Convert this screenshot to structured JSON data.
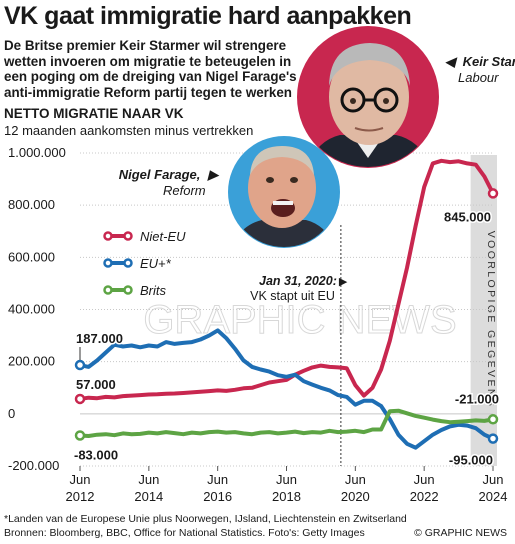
{
  "title": "VK gaat immigratie hard aanpakken",
  "subtitle": "De Britse premier Keir Starmer wil strengere wetten invoeren om migratie te beteugelen in een poging om de dreiging van Nigel Farage's anti-immigratie Reform partij tegen te werken",
  "people": {
    "starmer": {
      "name": "Keir Starmer,",
      "party": "Labour",
      "pointer": "◀"
    },
    "farage": {
      "name": "Nigel Farage,",
      "party": "Reform",
      "pointer": "▶"
    }
  },
  "colors": {
    "niet_eu": "#c8274f",
    "eu": "#1e6eb4",
    "brits": "#5da444",
    "provisional_band": "#dcdcdc",
    "grid": "#c8c8c8"
  },
  "chart_data": {
    "type": "line",
    "title": "NETTO MIGRATIE NAAR VK",
    "subtitle": "12 maanden aankomsten minus vertrekken",
    "xlim": [
      2012.5,
      2024.5
    ],
    "ylim": [
      -200000,
      1000000
    ],
    "y_ticks": [
      {
        "value": 1000000,
        "label": "1.000.000"
      },
      {
        "value": 800000,
        "label": "800.000"
      },
      {
        "value": 600000,
        "label": "600.000"
      },
      {
        "value": 400000,
        "label": "400.000"
      },
      {
        "value": 200000,
        "label": "200.000"
      },
      {
        "value": 0,
        "label": "0"
      },
      {
        "value": -200000,
        "label": "-200.000"
      }
    ],
    "x_ticks": [
      {
        "value": 2012.5,
        "month": "Jun",
        "year": "2012"
      },
      {
        "value": 2014.5,
        "month": "Jun",
        "year": "2014"
      },
      {
        "value": 2016.5,
        "month": "Jun",
        "year": "2016"
      },
      {
        "value": 2018.5,
        "month": "Jun",
        "year": "2018"
      },
      {
        "value": 2020.5,
        "month": "Jun",
        "year": "2020"
      },
      {
        "value": 2022.5,
        "month": "Jun",
        "year": "2022"
      },
      {
        "value": 2024.5,
        "month": "Jun",
        "year": "2024"
      }
    ],
    "grid": true,
    "legend_placement": "left",
    "series": [
      {
        "name": "Niet-EU",
        "color_key": "niet_eu",
        "points": [
          [
            2012.5,
            57000
          ],
          [
            2012.75,
            62000
          ],
          [
            2013.0,
            60000
          ],
          [
            2013.25,
            65000
          ],
          [
            2013.5,
            63000
          ],
          [
            2013.75,
            68000
          ],
          [
            2014.0,
            70000
          ],
          [
            2014.25,
            72000
          ],
          [
            2014.5,
            74000
          ],
          [
            2014.75,
            75000
          ],
          [
            2015.0,
            77000
          ],
          [
            2015.25,
            78000
          ],
          [
            2015.5,
            80000
          ],
          [
            2015.75,
            82000
          ],
          [
            2016.0,
            85000
          ],
          [
            2016.25,
            87000
          ],
          [
            2016.5,
            90000
          ],
          [
            2016.75,
            88000
          ],
          [
            2017.0,
            92000
          ],
          [
            2017.25,
            98000
          ],
          [
            2017.5,
            100000
          ],
          [
            2017.75,
            110000
          ],
          [
            2018.0,
            120000
          ],
          [
            2018.25,
            125000
          ],
          [
            2018.5,
            130000
          ],
          [
            2018.75,
            150000
          ],
          [
            2019.0,
            165000
          ],
          [
            2019.25,
            178000
          ],
          [
            2019.5,
            185000
          ],
          [
            2019.75,
            180000
          ],
          [
            2020.0,
            178000
          ],
          [
            2020.25,
            175000
          ],
          [
            2020.5,
            110000
          ],
          [
            2020.75,
            70000
          ],
          [
            2021.0,
            100000
          ],
          [
            2021.25,
            170000
          ],
          [
            2021.5,
            280000
          ],
          [
            2021.75,
            420000
          ],
          [
            2022.0,
            560000
          ],
          [
            2022.25,
            720000
          ],
          [
            2022.5,
            870000
          ],
          [
            2022.75,
            960000
          ],
          [
            2023.0,
            970000
          ],
          [
            2023.25,
            965000
          ],
          [
            2023.5,
            968000
          ],
          [
            2023.75,
            960000
          ],
          [
            2024.0,
            955000
          ],
          [
            2024.25,
            910000
          ],
          [
            2024.5,
            845000
          ]
        ],
        "first_label": "57.000",
        "last_label": "845.000"
      },
      {
        "name": "EU+*",
        "color_key": "eu",
        "points": [
          [
            2012.5,
            187000
          ],
          [
            2012.75,
            180000
          ],
          [
            2013.0,
            205000
          ],
          [
            2013.25,
            235000
          ],
          [
            2013.5,
            265000
          ],
          [
            2013.75,
            258000
          ],
          [
            2014.0,
            262000
          ],
          [
            2014.25,
            255000
          ],
          [
            2014.5,
            262000
          ],
          [
            2014.75,
            258000
          ],
          [
            2015.0,
            275000
          ],
          [
            2015.25,
            268000
          ],
          [
            2015.5,
            272000
          ],
          [
            2015.75,
            275000
          ],
          [
            2016.0,
            285000
          ],
          [
            2016.25,
            300000
          ],
          [
            2016.5,
            320000
          ],
          [
            2016.75,
            290000
          ],
          [
            2017.0,
            250000
          ],
          [
            2017.25,
            205000
          ],
          [
            2017.5,
            180000
          ],
          [
            2017.75,
            170000
          ],
          [
            2018.0,
            162000
          ],
          [
            2018.25,
            148000
          ],
          [
            2018.5,
            142000
          ],
          [
            2018.75,
            150000
          ],
          [
            2019.0,
            125000
          ],
          [
            2019.25,
            112000
          ],
          [
            2019.5,
            100000
          ],
          [
            2019.75,
            90000
          ],
          [
            2020.0,
            72000
          ],
          [
            2020.25,
            65000
          ],
          [
            2020.5,
            35000
          ],
          [
            2020.75,
            50000
          ],
          [
            2021.0,
            50000
          ],
          [
            2021.25,
            30000
          ],
          [
            2021.5,
            -20000
          ],
          [
            2021.75,
            -80000
          ],
          [
            2022.0,
            -115000
          ],
          [
            2022.25,
            -130000
          ],
          [
            2022.5,
            -105000
          ],
          [
            2022.75,
            -80000
          ],
          [
            2023.0,
            -62000
          ],
          [
            2023.25,
            -48000
          ],
          [
            2023.5,
            -42000
          ],
          [
            2023.75,
            -45000
          ],
          [
            2024.0,
            -55000
          ],
          [
            2024.25,
            -80000
          ],
          [
            2024.5,
            -95000
          ]
        ],
        "first_label": "187.000",
        "last_label": "-95.000"
      },
      {
        "name": "Brits",
        "color_key": "brits",
        "points": [
          [
            2012.5,
            -83000
          ],
          [
            2012.75,
            -85000
          ],
          [
            2013.0,
            -80000
          ],
          [
            2013.25,
            -78000
          ],
          [
            2013.5,
            -82000
          ],
          [
            2013.75,
            -75000
          ],
          [
            2014.0,
            -78000
          ],
          [
            2014.25,
            -77000
          ],
          [
            2014.5,
            -72000
          ],
          [
            2014.75,
            -75000
          ],
          [
            2015.0,
            -70000
          ],
          [
            2015.25,
            -74000
          ],
          [
            2015.5,
            -78000
          ],
          [
            2015.75,
            -72000
          ],
          [
            2016.0,
            -75000
          ],
          [
            2016.25,
            -70000
          ],
          [
            2016.5,
            -68000
          ],
          [
            2016.75,
            -72000
          ],
          [
            2017.0,
            -70000
          ],
          [
            2017.25,
            -75000
          ],
          [
            2017.5,
            -78000
          ],
          [
            2017.75,
            -72000
          ],
          [
            2018.0,
            -70000
          ],
          [
            2018.25,
            -75000
          ],
          [
            2018.5,
            -72000
          ],
          [
            2018.75,
            -68000
          ],
          [
            2019.0,
            -74000
          ],
          [
            2019.25,
            -70000
          ],
          [
            2019.5,
            -72000
          ],
          [
            2019.75,
            -65000
          ],
          [
            2020.0,
            -70000
          ],
          [
            2020.25,
            -68000
          ],
          [
            2020.5,
            -65000
          ],
          [
            2020.75,
            -70000
          ],
          [
            2021.0,
            -60000
          ],
          [
            2021.25,
            -60000
          ],
          [
            2021.5,
            10000
          ],
          [
            2021.75,
            12000
          ],
          [
            2022.0,
            2000
          ],
          [
            2022.25,
            -8000
          ],
          [
            2022.5,
            -15000
          ],
          [
            2022.75,
            -22000
          ],
          [
            2023.0,
            -28000
          ],
          [
            2023.25,
            -32000
          ],
          [
            2023.5,
            -30000
          ],
          [
            2023.75,
            -28000
          ],
          [
            2024.0,
            -25000
          ],
          [
            2024.25,
            -27000
          ],
          [
            2024.5,
            -21000
          ]
        ],
        "first_label": "-83.000",
        "last_label": "-21.000"
      }
    ],
    "annotations": {
      "brexit": {
        "x": 2020.08,
        "date": "Jan 31, 2020:",
        "text": "VK stapt uit EU",
        "pointer": "▶"
      },
      "provisional": {
        "x_start": 2023.85,
        "x_end": 2024.5,
        "text": "VOORLOPIGE GEGEVENS"
      }
    }
  },
  "footer": {
    "footnote": "*Landen van de Europese Unie plus Noorwegen, IJsland, Liechtenstein en Zwitserland",
    "sources": "Bronnen: Bloomberg, BBC, Office for National Statistics. Foto's: Getty Images",
    "credit": "© GRAPHIC NEWS"
  },
  "watermark": "GRAPHIC NEWS"
}
